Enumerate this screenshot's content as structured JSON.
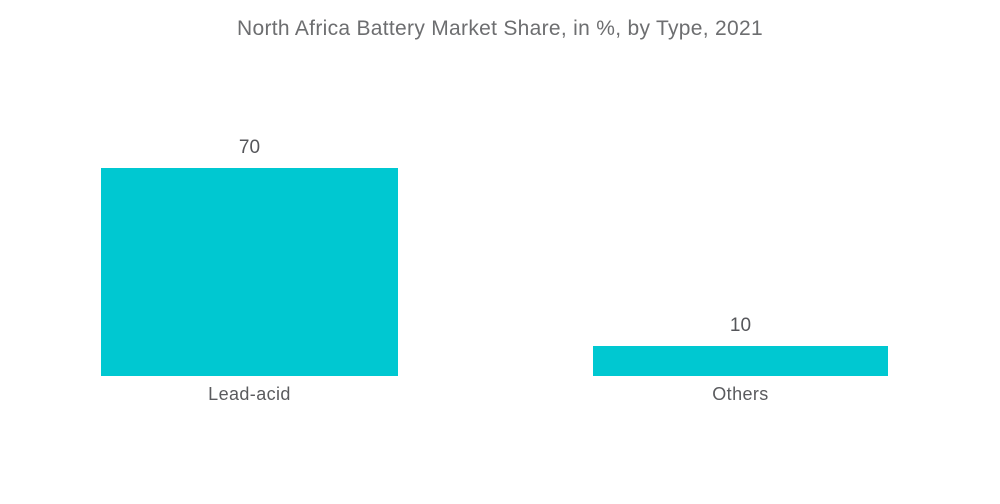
{
  "chart_data": {
    "type": "bar",
    "title": "North Africa Battery Market Share, in %, by Type, 2021",
    "categories": [
      "Lead-acid",
      "Others"
    ],
    "values": [
      70,
      10
    ],
    "value_labels": [
      "70",
      "10"
    ],
    "xlabel": "",
    "ylabel": "",
    "ylim": [
      0,
      70
    ],
    "grid": false,
    "legend": false,
    "axes_visible": false,
    "bar_color": "#00c8d1",
    "title_color": "#6d6e70",
    "label_color": "#55565a",
    "background_color": "#ffffff"
  }
}
